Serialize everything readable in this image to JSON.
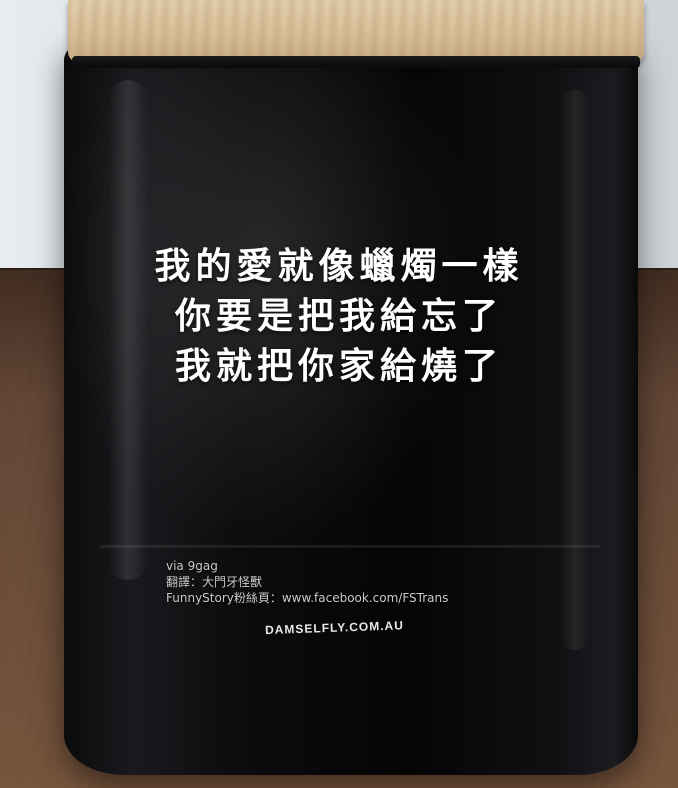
{
  "caption": {
    "line1": "我的愛就像蠟燭一樣",
    "line2": "你要是把我給忘了",
    "line3": "我就把你家給燒了"
  },
  "credits": {
    "source": "via 9gag",
    "translator": "翻譯：大門牙怪獸",
    "fanpage": "FunnyStory粉絲頁：www.facebook.com/FSTrans"
  },
  "brand": {
    "label": "DAMSELFLY.COM.AU"
  }
}
